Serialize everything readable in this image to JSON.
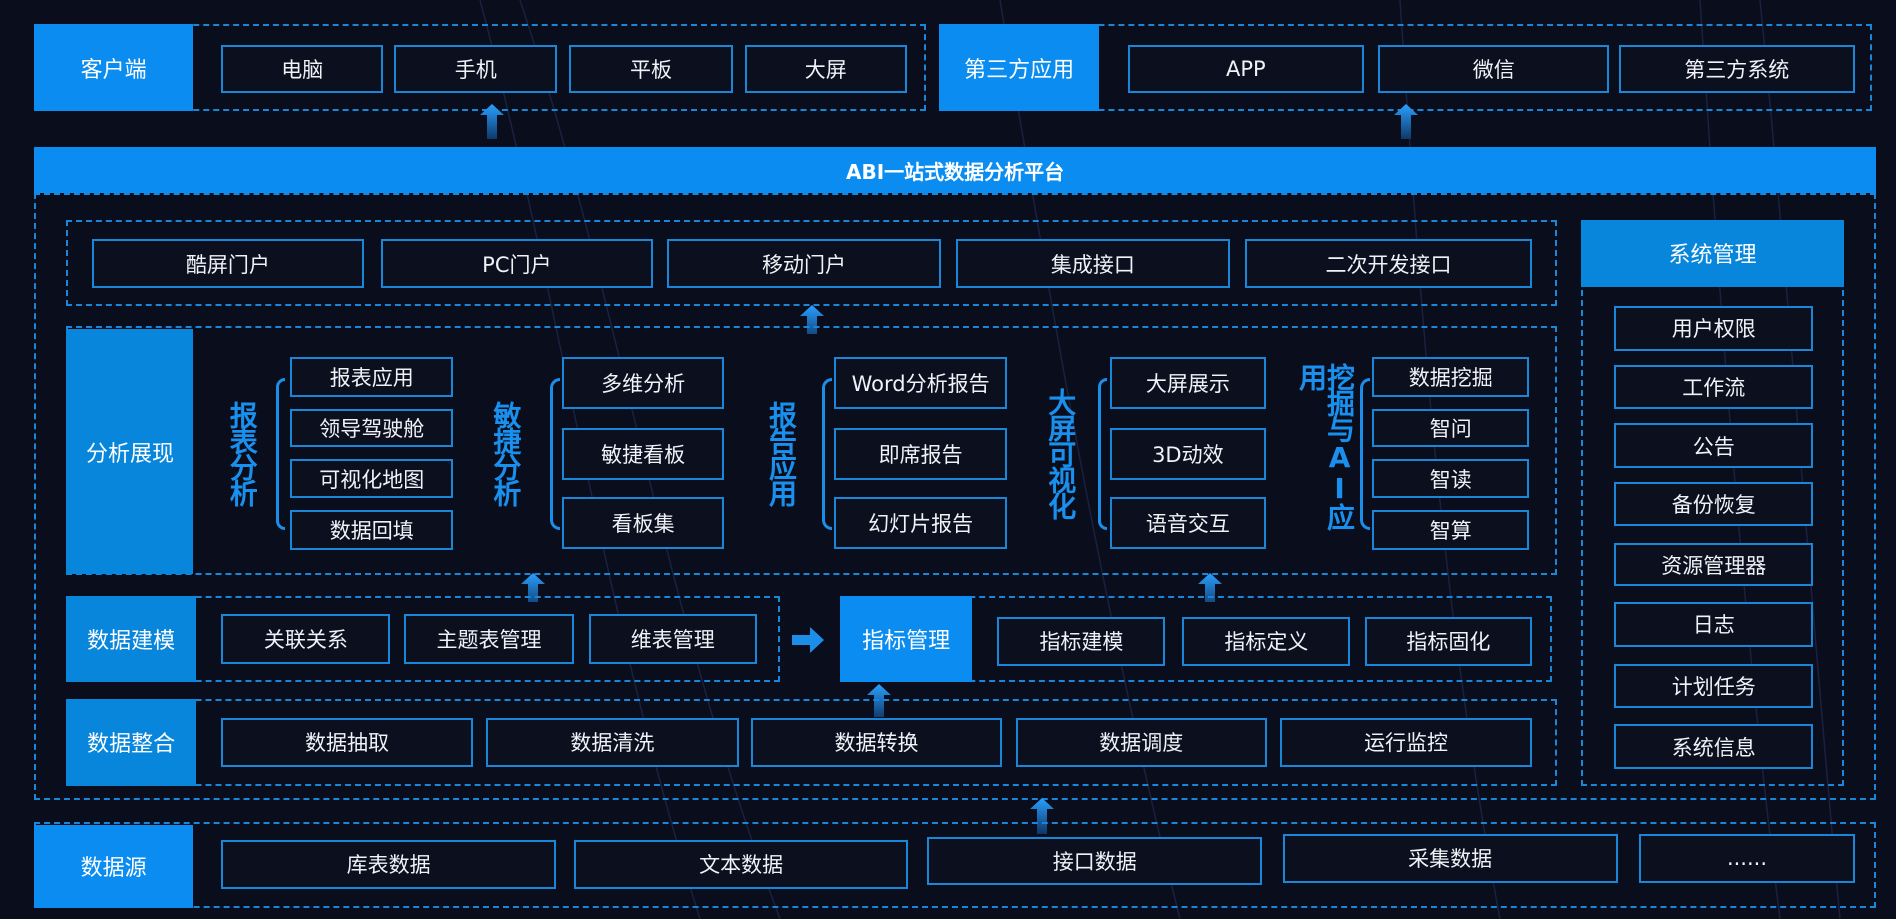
{
  "colors": {
    "background": "#0a0d1b",
    "accent": "#0a8cf0",
    "border": "#1a86d8",
    "group_title": "#1a90ee"
  },
  "client": {
    "label": "客户端",
    "items": [
      "电脑",
      "手机",
      "平板",
      "大屏"
    ]
  },
  "third_party": {
    "label": "第三方应用",
    "items": [
      "APP",
      "微信",
      "第三方系统"
    ]
  },
  "platform": {
    "title": "ABI一站式数据分析平台"
  },
  "portals": {
    "items": [
      "酷屏门户",
      "PC门户",
      "移动门户",
      "集成接口",
      "二次开发接口"
    ]
  },
  "analysis": {
    "label": "分析展现",
    "groups": [
      {
        "title": "报表分析",
        "items": [
          "报表应用",
          "领导驾驶舱",
          "可视化地图",
          "数据回填"
        ]
      },
      {
        "title": "敏捷分析",
        "items": [
          "多维分析",
          "敏捷看板",
          "看板集"
        ]
      },
      {
        "title": "报告应用",
        "items": [
          "Word分析报告",
          "即席报告",
          "幻灯片报告"
        ]
      },
      {
        "title": "大屏可视化",
        "items": [
          "大屏展示",
          "3D动效",
          "语音交互"
        ]
      },
      {
        "title": "挖掘与AI应用",
        "items": [
          "数据挖掘",
          "智问",
          "智读",
          "智算"
        ]
      }
    ]
  },
  "modeling": {
    "label": "数据建模",
    "items": [
      "关联关系",
      "主题表管理",
      "维表管理"
    ]
  },
  "metrics": {
    "label": "指标管理",
    "items": [
      "指标建模",
      "指标定义",
      "指标固化"
    ]
  },
  "integration": {
    "label": "数据整合",
    "items": [
      "数据抽取",
      "数据清洗",
      "数据转换",
      "数据调度",
      "运行监控"
    ]
  },
  "system": {
    "label": "系统管理",
    "items": [
      "用户权限",
      "工作流",
      "公告",
      "备份恢复",
      "资源管理器",
      "日志",
      "计划任务",
      "系统信息"
    ]
  },
  "datasource": {
    "label": "数据源",
    "items": [
      "库表数据",
      "文本数据",
      "接口数据",
      "采集数据",
      "......"
    ]
  }
}
